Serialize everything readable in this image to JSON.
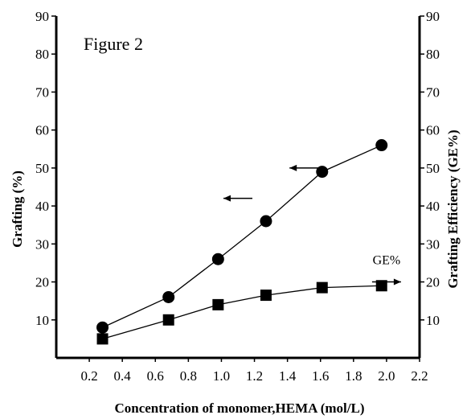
{
  "chart_data": {
    "type": "line",
    "annotation": "Figure 2",
    "xlabel": "Concentration of monomer,HEMA (mol/L)",
    "ylabel_left": "Grafting (%)",
    "ylabel_right": "Grafting Efficiency (GE%)",
    "xlim": [
      0,
      2.2
    ],
    "ylim": [
      0,
      90
    ],
    "x_ticks": [
      "0.2",
      "0.4",
      "0.6",
      "0.8",
      "1.0",
      "1.2",
      "1.4",
      "1.6",
      "1.8",
      "2.0",
      "2.2"
    ],
    "y_ticks": [
      "10",
      "20",
      "30",
      "40",
      "50",
      "60",
      "70",
      "80",
      "90"
    ],
    "grid": false,
    "series": [
      {
        "name": "",
        "axis": "left",
        "marker": "circle",
        "x": [
          0.28,
          0.68,
          0.98,
          1.27,
          1.61,
          1.97
        ],
        "y": [
          8,
          16,
          26,
          36,
          49,
          56
        ]
      },
      {
        "name": "GE%",
        "axis": "right",
        "marker": "square",
        "x": [
          0.28,
          0.68,
          0.98,
          1.27,
          1.61,
          1.97
        ],
        "y": [
          5,
          10,
          14,
          16.5,
          18.5,
          19
        ]
      }
    ],
    "arrows": [
      {
        "direction": "left",
        "x": 1.5,
        "y": 50
      },
      {
        "direction": "left",
        "x": 1.1,
        "y": 42
      },
      {
        "direction": "right",
        "x": 2.0,
        "y": 20,
        "label": "GE%"
      }
    ]
  }
}
